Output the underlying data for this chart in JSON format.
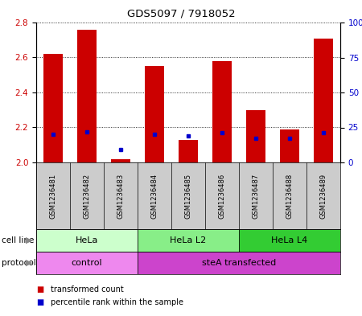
{
  "title": "GDS5097 / 7918052",
  "samples": [
    "GSM1236481",
    "GSM1236482",
    "GSM1236483",
    "GSM1236484",
    "GSM1236485",
    "GSM1236486",
    "GSM1236487",
    "GSM1236488",
    "GSM1236489"
  ],
  "transformed_count": [
    2.62,
    2.76,
    2.02,
    2.55,
    2.13,
    2.58,
    2.3,
    2.19,
    2.71
  ],
  "percentile_rank": [
    20,
    22,
    9,
    20,
    19,
    21,
    17,
    17,
    21
  ],
  "ylim_left": [
    2.0,
    2.8
  ],
  "ylim_right": [
    0,
    100
  ],
  "yticks_left": [
    2.0,
    2.2,
    2.4,
    2.6,
    2.8
  ],
  "yticks_right": [
    0,
    25,
    50,
    75,
    100
  ],
  "ytick_labels_right": [
    "0",
    "25",
    "50",
    "75",
    "100%"
  ],
  "bar_color": "#cc0000",
  "dot_color": "#0000cc",
  "cell_line_groups": [
    {
      "label": "HeLa",
      "start": 0,
      "end": 3,
      "color": "#ccffcc"
    },
    {
      "label": "HeLa L2",
      "start": 3,
      "end": 6,
      "color": "#88ee88"
    },
    {
      "label": "HeLa L4",
      "start": 6,
      "end": 9,
      "color": "#33cc33"
    }
  ],
  "protocol_groups": [
    {
      "label": "control",
      "start": 0,
      "end": 3,
      "color": "#ee88ee"
    },
    {
      "label": "steA transfected",
      "start": 3,
      "end": 9,
      "color": "#cc44cc"
    }
  ],
  "legend_items": [
    {
      "color": "#cc0000",
      "label": "transformed count"
    },
    {
      "color": "#0000cc",
      "label": "percentile rank within the sample"
    }
  ],
  "axis_label_color_left": "#cc0000",
  "axis_label_color_right": "#0000cc",
  "background_color": "#ffffff",
  "plot_bg_color": "#ffffff",
  "sample_bg_color": "#cccccc",
  "cell_line_label": "cell line",
  "protocol_label": "protocol",
  "arrow_color": "#888888"
}
